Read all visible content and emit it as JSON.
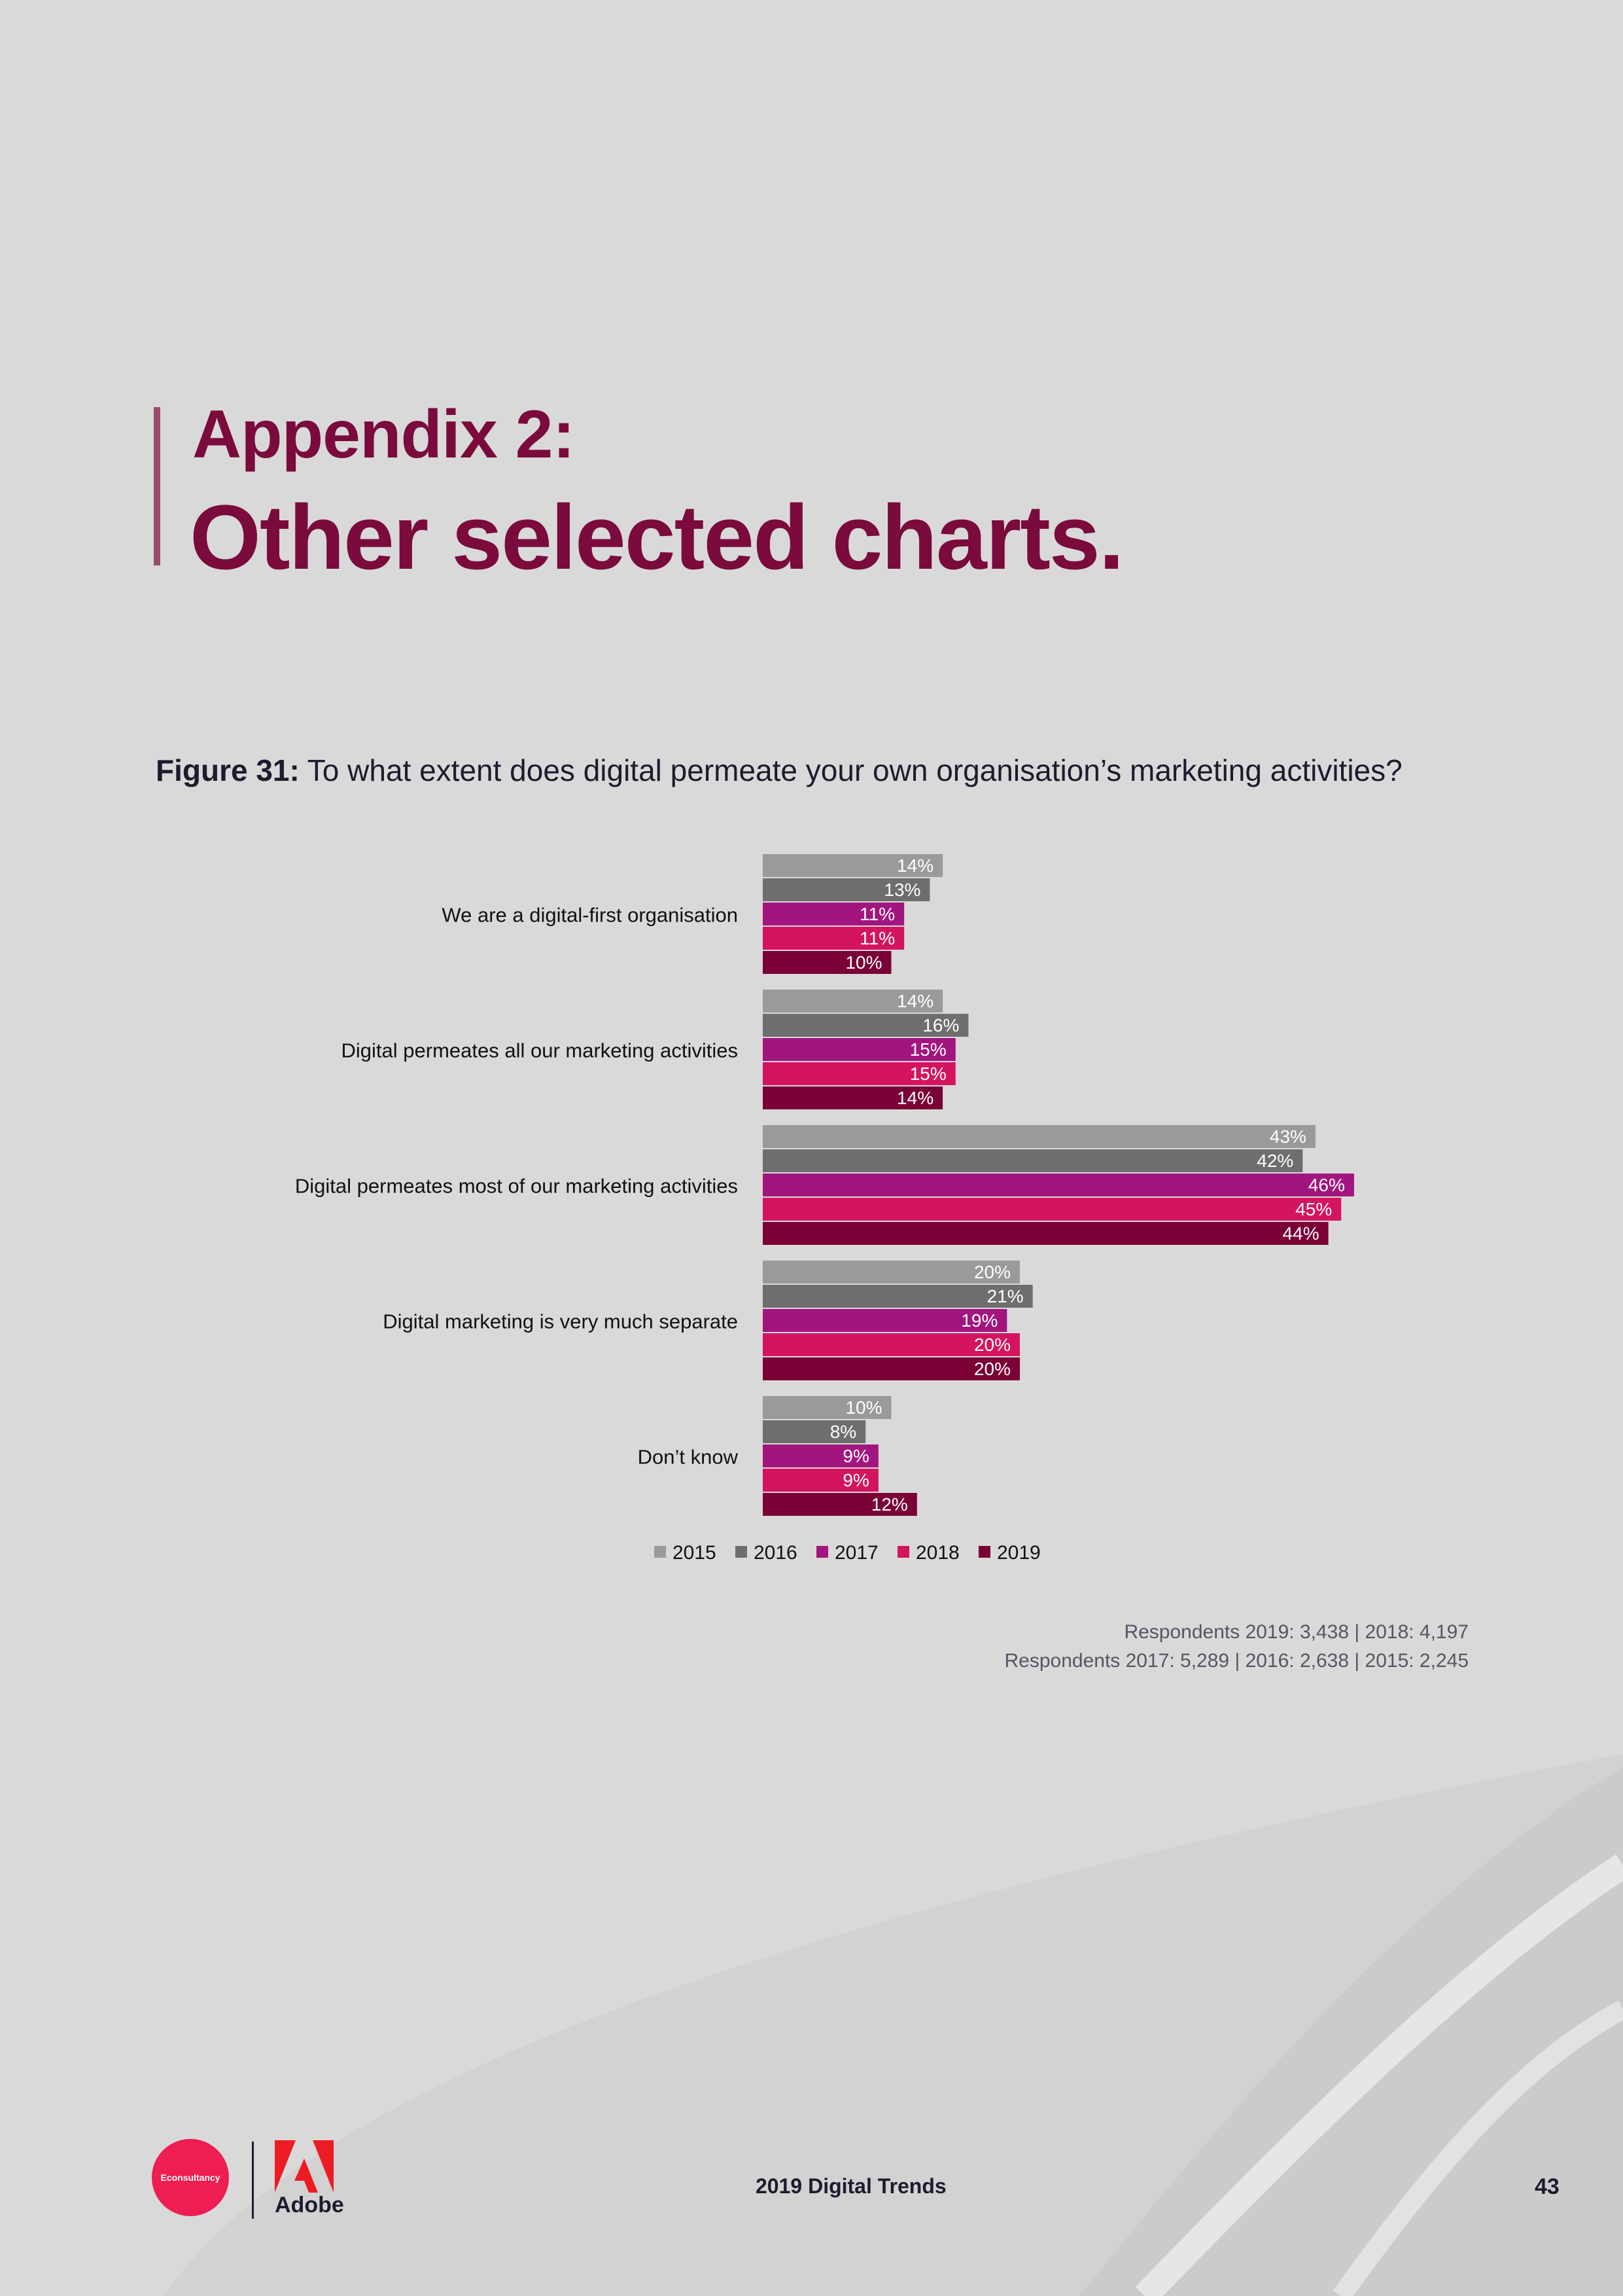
{
  "appendix": {
    "label": "Appendix 2:",
    "title": "Other selected charts."
  },
  "figure": {
    "number": "Figure 31:",
    "question": " To what extent does digital permeate your own organisation’s marketing activities?"
  },
  "chart_data": {
    "type": "bar",
    "orientation": "horizontal",
    "title": "To what extent does digital permeate your own organisation’s marketing activities?",
    "categories": [
      "We are a digital-first organisation",
      "Digital permeates all our marketing activities",
      "Digital permeates most of our marketing activities",
      "Digital marketing is very much separate",
      "Don’t know"
    ],
    "series": [
      {
        "name": "2015",
        "color": "#9a9a9a",
        "values": [
          14,
          14,
          43,
          20,
          10
        ]
      },
      {
        "name": "2016",
        "color": "#6e6e6e",
        "values": [
          13,
          16,
          42,
          21,
          8
        ]
      },
      {
        "name": "2017",
        "color": "#a3157e",
        "values": [
          11,
          15,
          46,
          19,
          9
        ]
      },
      {
        "name": "2018",
        "color": "#d4145e",
        "values": [
          11,
          15,
          45,
          20,
          9
        ]
      },
      {
        "name": "2019",
        "color": "#7a0035",
        "values": [
          10,
          14,
          44,
          20,
          12
        ]
      }
    ],
    "value_suffix": "%",
    "xlim": [
      0,
      50
    ],
    "legend_position": "bottom"
  },
  "respondents": {
    "line1": "Respondents 2019: 3,438 | 2018: 4,197",
    "line2": "Respondents 2017: 5,289 | 2016: 2,638 | 2015: 2,245"
  },
  "footer": {
    "econsultancy_logo": "Econsultancy",
    "adobe_logo": "Adobe",
    "report_title": "2019 Digital Trends",
    "page_number": "43"
  },
  "colors": {
    "background": "#d9d9d9",
    "heading": "#7a0b3c",
    "accent_bar": "#9c4a6b",
    "econsultancy_red": "#ee1d52",
    "adobe_red": "#ed1c24"
  }
}
